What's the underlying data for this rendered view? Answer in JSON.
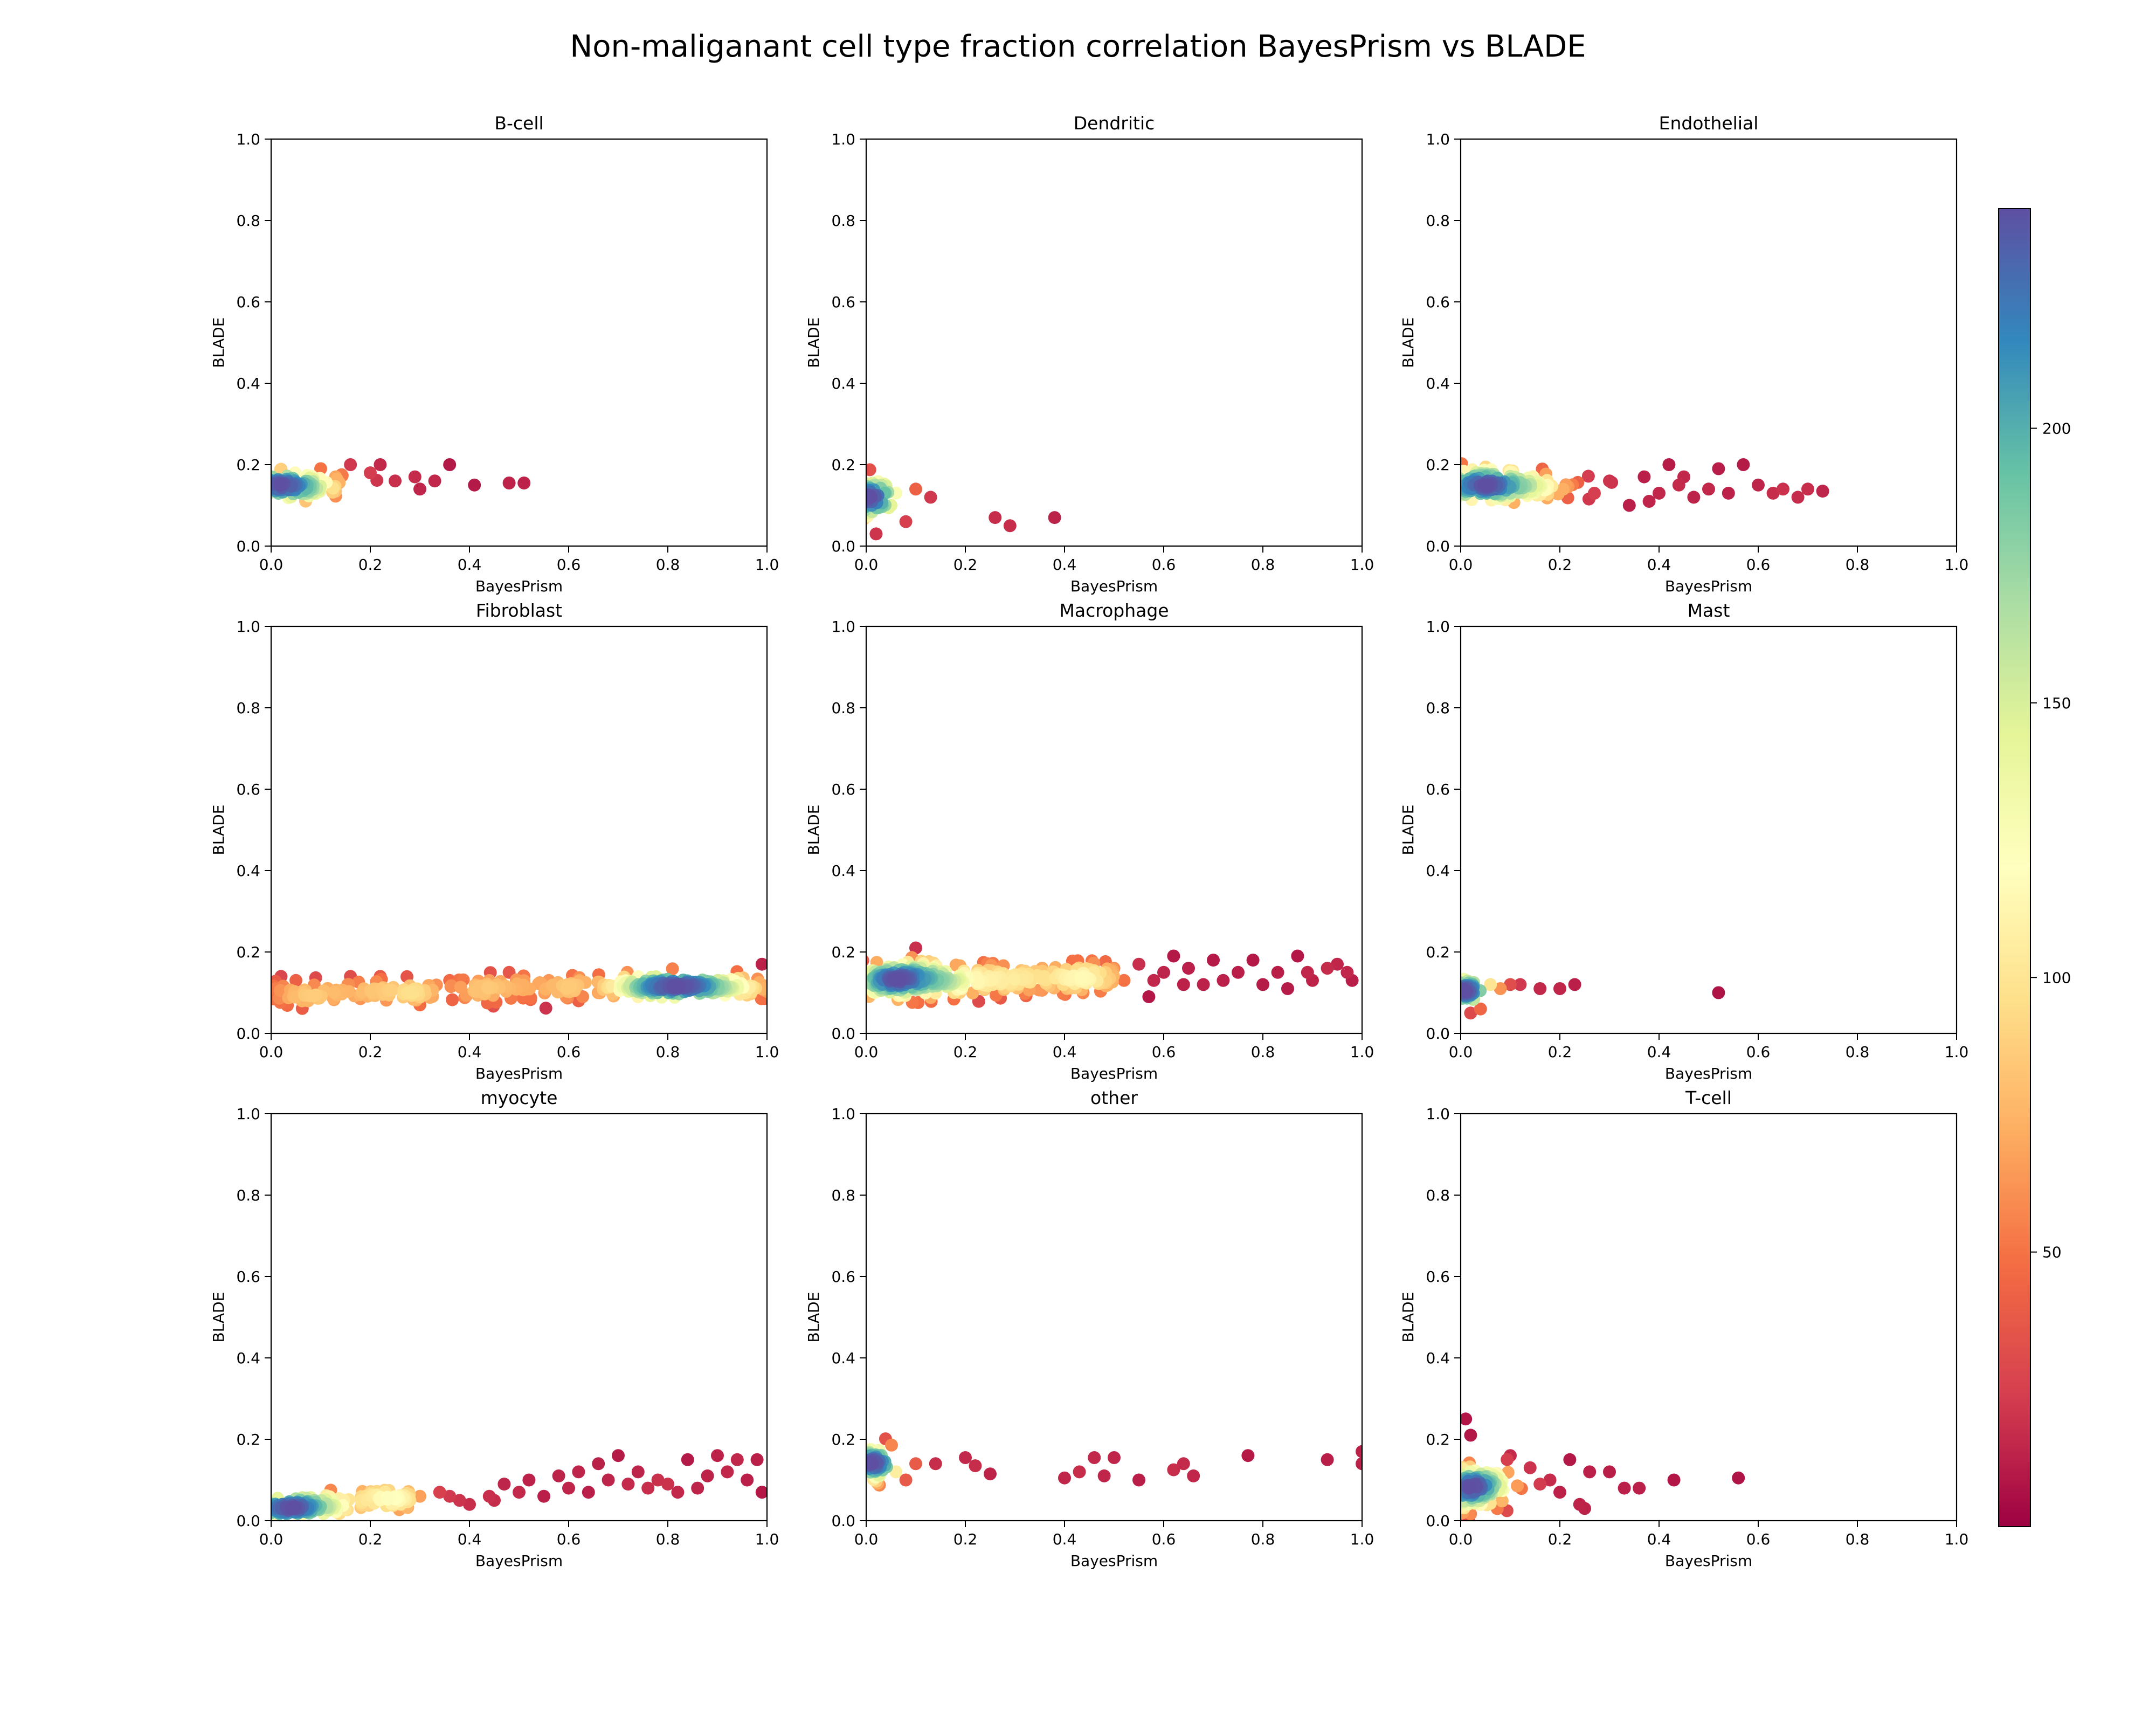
{
  "chart_data": {
    "type": "scatter",
    "title": "Non-maliganant cell type fraction correlation BayesPrism vs BLADE",
    "colormap": "Spectral",
    "colorbar": {
      "range": [
        0,
        240
      ],
      "ticks": [
        "50",
        "100",
        "150",
        "200"
      ],
      "tick_values": [
        50,
        100,
        150,
        200
      ]
    },
    "xlabel": "BayesPrism",
    "ylabel": "BLADE",
    "xlim": [
      0,
      1
    ],
    "ylim": [
      0,
      1
    ],
    "x_ticks": [
      "0.0",
      "0.2",
      "0.4",
      "0.6",
      "0.8",
      "1.0"
    ],
    "y_ticks": [
      "0.0",
      "0.2",
      "0.4",
      "0.6",
      "0.8",
      "1.0"
    ],
    "grid": false,
    "panels": [
      {
        "title": "B-cell",
        "cluster": {
          "cx": 0.02,
          "cy": 0.15,
          "sx": 0.06,
          "sy": 0.015,
          "n": 160
        },
        "outliers": [
          [
            0.1,
            0.19
          ],
          [
            0.13,
            0.17
          ],
          [
            0.16,
            0.2
          ],
          [
            0.2,
            0.18
          ],
          [
            0.22,
            0.2
          ],
          [
            0.25,
            0.16
          ],
          [
            0.29,
            0.17
          ],
          [
            0.3,
            0.14
          ],
          [
            0.33,
            0.16
          ],
          [
            0.36,
            0.2
          ],
          [
            0.41,
            0.15
          ],
          [
            0.48,
            0.155
          ],
          [
            0.51,
            0.155
          ]
        ]
      },
      {
        "title": "Dendritic",
        "cluster": {
          "cx": 0.01,
          "cy": 0.12,
          "sx": 0.02,
          "sy": 0.025,
          "n": 70
        },
        "outliers": [
          [
            0.05,
            0.1
          ],
          [
            0.08,
            0.06
          ],
          [
            0.1,
            0.14
          ],
          [
            0.13,
            0.12
          ],
          [
            0.02,
            0.03
          ],
          [
            0.06,
            0.13
          ],
          [
            0.26,
            0.07
          ],
          [
            0.29,
            0.05
          ],
          [
            0.38,
            0.07
          ]
        ]
      },
      {
        "title": "Endothelial",
        "cluster": {
          "cx": 0.05,
          "cy": 0.15,
          "sx": 0.1,
          "sy": 0.02,
          "n": 260
        },
        "outliers": [
          [
            0.3,
            0.16
          ],
          [
            0.34,
            0.1
          ],
          [
            0.37,
            0.17
          ],
          [
            0.4,
            0.13
          ],
          [
            0.42,
            0.2
          ],
          [
            0.44,
            0.15
          ],
          [
            0.47,
            0.12
          ],
          [
            0.5,
            0.14
          ],
          [
            0.52,
            0.19
          ],
          [
            0.54,
            0.13
          ],
          [
            0.57,
            0.2
          ],
          [
            0.6,
            0.15
          ],
          [
            0.63,
            0.13
          ],
          [
            0.65,
            0.14
          ],
          [
            0.68,
            0.12
          ],
          [
            0.7,
            0.14
          ],
          [
            0.73,
            0.135
          ],
          [
            0.45,
            0.17
          ],
          [
            0.38,
            0.11
          ]
        ]
      },
      {
        "title": "Fibroblast",
        "cluster": {
          "cx": 0.83,
          "cy": 0.115,
          "sx": 0.08,
          "sy": 0.008,
          "n": 170
        },
        "band": {
          "x0": 0.0,
          "x1": 1.0,
          "y0": 0.1,
          "y1": 0.12,
          "sy": 0.015,
          "n": 260
        },
        "outliers": [
          [
            0.02,
            0.14
          ],
          [
            0.05,
            0.13
          ],
          [
            0.16,
            0.14
          ],
          [
            0.22,
            0.14
          ],
          [
            0.3,
            0.07
          ],
          [
            0.36,
            0.13
          ],
          [
            0.48,
            0.15
          ],
          [
            0.51,
            0.14
          ],
          [
            0.56,
            0.13
          ],
          [
            0.99,
            0.17
          ],
          [
            0.62,
            0.08
          ],
          [
            0.74,
            0.09
          ]
        ]
      },
      {
        "title": "Macrophage",
        "cluster": {
          "cx": 0.07,
          "cy": 0.13,
          "sx": 0.06,
          "sy": 0.02,
          "n": 240
        },
        "band": {
          "x0": 0.12,
          "x1": 0.5,
          "y0": 0.13,
          "y1": 0.145,
          "sy": 0.02,
          "n": 180
        },
        "outliers": [
          [
            0.1,
            0.21
          ],
          [
            0.52,
            0.13
          ],
          [
            0.55,
            0.17
          ],
          [
            0.57,
            0.09
          ],
          [
            0.6,
            0.15
          ],
          [
            0.62,
            0.19
          ],
          [
            0.65,
            0.16
          ],
          [
            0.68,
            0.12
          ],
          [
            0.7,
            0.18
          ],
          [
            0.72,
            0.13
          ],
          [
            0.75,
            0.15
          ],
          [
            0.78,
            0.18
          ],
          [
            0.8,
            0.12
          ],
          [
            0.83,
            0.15
          ],
          [
            0.85,
            0.11
          ],
          [
            0.87,
            0.19
          ],
          [
            0.89,
            0.15
          ],
          [
            0.9,
            0.13
          ],
          [
            0.93,
            0.16
          ],
          [
            0.95,
            0.17
          ],
          [
            0.97,
            0.15
          ],
          [
            0.98,
            0.13
          ],
          [
            0.58,
            0.13
          ],
          [
            0.64,
            0.12
          ]
        ]
      },
      {
        "title": "Mast",
        "cluster": {
          "cx": 0.008,
          "cy": 0.105,
          "sx": 0.012,
          "sy": 0.012,
          "n": 90
        },
        "outliers": [
          [
            0.06,
            0.12
          ],
          [
            0.08,
            0.11
          ],
          [
            0.1,
            0.12
          ],
          [
            0.12,
            0.12
          ],
          [
            0.16,
            0.11
          ],
          [
            0.2,
            0.11
          ],
          [
            0.23,
            0.12
          ],
          [
            0.04,
            0.06
          ],
          [
            0.02,
            0.05
          ],
          [
            0.52,
            0.1
          ]
        ]
      },
      {
        "title": "myocyte",
        "cluster": {
          "cx": 0.03,
          "cy": 0.03,
          "sx": 0.05,
          "sy": 0.008,
          "n": 120
        },
        "band": {
          "x0": 0.05,
          "x1": 0.28,
          "y0": 0.04,
          "y1": 0.06,
          "sy": 0.012,
          "n": 90
        },
        "outliers": [
          [
            0.3,
            0.06
          ],
          [
            0.34,
            0.07
          ],
          [
            0.38,
            0.05
          ],
          [
            0.4,
            0.04
          ],
          [
            0.44,
            0.06
          ],
          [
            0.47,
            0.09
          ],
          [
            0.5,
            0.07
          ],
          [
            0.52,
            0.1
          ],
          [
            0.55,
            0.06
          ],
          [
            0.58,
            0.11
          ],
          [
            0.6,
            0.08
          ],
          [
            0.62,
            0.12
          ],
          [
            0.64,
            0.07
          ],
          [
            0.66,
            0.14
          ],
          [
            0.68,
            0.1
          ],
          [
            0.7,
            0.16
          ],
          [
            0.72,
            0.09
          ],
          [
            0.74,
            0.12
          ],
          [
            0.76,
            0.08
          ],
          [
            0.78,
            0.1
          ],
          [
            0.8,
            0.09
          ],
          [
            0.82,
            0.07
          ],
          [
            0.84,
            0.15
          ],
          [
            0.86,
            0.08
          ],
          [
            0.88,
            0.11
          ],
          [
            0.9,
            0.16
          ],
          [
            0.92,
            0.12
          ],
          [
            0.94,
            0.15
          ],
          [
            0.96,
            0.1
          ],
          [
            0.98,
            0.15
          ],
          [
            0.99,
            0.07
          ],
          [
            0.45,
            0.05
          ],
          [
            0.36,
            0.06
          ]
        ]
      },
      {
        "title": "other",
        "cluster": {
          "cx": 0.01,
          "cy": 0.14,
          "sx": 0.015,
          "sy": 0.02,
          "n": 80
        },
        "outliers": [
          [
            0.06,
            0.12
          ],
          [
            0.08,
            0.1
          ],
          [
            0.1,
            0.14
          ],
          [
            0.14,
            0.14
          ],
          [
            0.2,
            0.155
          ],
          [
            0.22,
            0.135
          ],
          [
            0.25,
            0.115
          ],
          [
            0.4,
            0.105
          ],
          [
            0.43,
            0.12
          ],
          [
            0.46,
            0.155
          ],
          [
            0.48,
            0.11
          ],
          [
            0.5,
            0.155
          ],
          [
            0.55,
            0.1
          ],
          [
            0.62,
            0.125
          ],
          [
            0.64,
            0.14
          ],
          [
            0.66,
            0.11
          ],
          [
            0.77,
            0.16
          ],
          [
            0.93,
            0.15
          ],
          [
            1.0,
            0.17
          ],
          [
            1.0,
            0.14
          ]
        ]
      },
      {
        "title": "T-cell",
        "cluster": {
          "cx": 0.02,
          "cy": 0.08,
          "sx": 0.04,
          "sy": 0.03,
          "n": 180
        },
        "outliers": [
          [
            0.01,
            0.25
          ],
          [
            0.02,
            0.21
          ],
          [
            0.1,
            0.16
          ],
          [
            0.14,
            0.13
          ],
          [
            0.18,
            0.1
          ],
          [
            0.22,
            0.15
          ],
          [
            0.24,
            0.04
          ],
          [
            0.25,
            0.03
          ],
          [
            0.26,
            0.12
          ],
          [
            0.3,
            0.12
          ],
          [
            0.33,
            0.08
          ],
          [
            0.36,
            0.08
          ],
          [
            0.43,
            0.1
          ],
          [
            0.56,
            0.105
          ],
          [
            0.2,
            0.07
          ],
          [
            0.16,
            0.09
          ]
        ]
      }
    ]
  }
}
